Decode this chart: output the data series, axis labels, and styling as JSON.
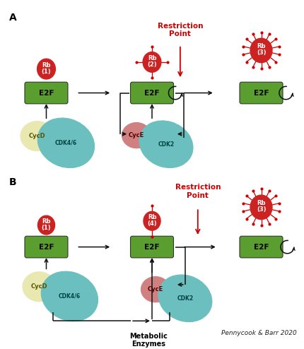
{
  "fig_width": 4.31,
  "fig_height": 4.94,
  "dpi": 100,
  "bg_color": "#ffffff",
  "label_A": "A",
  "label_B": "B",
  "restriction_point_text": "Restriction\nPoint",
  "restriction_color": "#cc0000",
  "rb_color": "#cc2222",
  "rb_text_color": "#ffffff",
  "e2f_color": "#5a9e2f",
  "e2f_text_color": "#000000",
  "cycd_color": "#e8e8b0",
  "cdk46_color": "#6bbfbf",
  "cyce_color": "#d08080",
  "cdk2_color": "#6bbfbf",
  "arrow_color": "#111111",
  "spike_color": "#cc0000",
  "pennycook_text": "Pennycook & Barr 2020",
  "metabolic_text": "Metabolic\nEnzymes"
}
